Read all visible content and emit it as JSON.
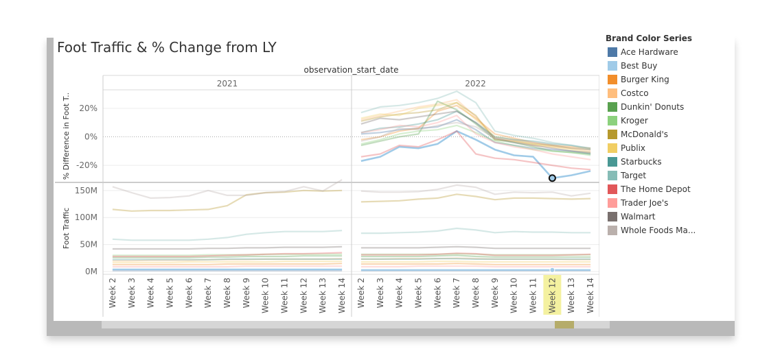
{
  "title": "Foot Traffic & % Change from LY",
  "chart_data": {
    "type": "line",
    "title": "Foot Traffic & % Change from LY",
    "column_header": "observation_start_date",
    "years": [
      "2021",
      "2022"
    ],
    "categories": [
      "Week 2",
      "Week 3",
      "Week 4",
      "Week 5",
      "Week 6",
      "Week 7",
      "Week 8",
      "Week 9",
      "Week 10",
      "Week 11",
      "Week 12",
      "Week 13",
      "Week 14"
    ],
    "highlighted_category": {
      "year": "2022",
      "week": "Week 12"
    },
    "panels": [
      {
        "ylabel": "% Difference in Foot T..",
        "ylim": [
          -32,
          33
        ],
        "yticks": [
          -20,
          0,
          20
        ],
        "yticklabels": [
          "-20%",
          "0%",
          "20%"
        ],
        "reference_line": 0,
        "years_with_data": [
          "2022"
        ]
      },
      {
        "ylabel": "Foot Traffic",
        "ylim": [
          -5,
          165
        ],
        "yticks": [
          0,
          50,
          100,
          150
        ],
        "yticklabels": [
          "0M",
          "50M",
          "100M",
          "150M"
        ]
      }
    ],
    "series": [
      {
        "name": "Ace Hardware",
        "color": "#4e79a7",
        "traffic": {
          "2021": [
            2,
            2,
            2,
            2,
            2,
            2,
            2,
            2,
            2,
            2,
            2,
            2,
            2
          ],
          "2022": [
            2,
            2,
            2,
            2,
            2,
            2,
            2,
            2,
            2,
            2,
            2,
            2,
            2
          ]
        },
        "pct_2022": [
          2,
          3,
          5,
          6,
          7,
          12,
          5,
          -4,
          -6,
          -8,
          -9,
          -10,
          -12
        ]
      },
      {
        "name": "Best Buy",
        "color": "#a0cbe8",
        "traffic": {
          "2021": [
            4,
            4,
            4,
            4,
            4,
            4,
            4,
            4,
            4,
            4,
            4,
            4,
            4
          ],
          "2022": [
            3,
            3,
            3,
            3,
            3,
            3,
            3,
            3,
            3,
            3,
            3,
            3,
            3
          ]
        },
        "pct_2022": [
          -17,
          -14,
          -7,
          -8,
          -5,
          4,
          -2,
          -9,
          -13,
          -14,
          -29,
          -27,
          -24
        ]
      },
      {
        "name": "Burger King",
        "color": "#f28e2b",
        "traffic": {
          "2021": [
            13,
            13,
            13,
            13,
            13,
            13,
            14,
            14,
            14,
            14,
            14,
            14,
            15
          ],
          "2022": [
            14,
            14,
            14,
            14,
            14,
            15,
            14,
            13,
            13,
            13,
            13,
            13,
            13
          ]
        },
        "pct_2022": [
          -2,
          0,
          4,
          6,
          18,
          22,
          13,
          2,
          -1,
          -4,
          -6,
          -7,
          -8
        ]
      },
      {
        "name": "Costco",
        "color": "#ffbe7d",
        "traffic": {
          "2021": [
            20,
            20,
            21,
            21,
            21,
            22,
            22,
            22,
            23,
            23,
            23,
            23,
            24
          ],
          "2022": [
            23,
            23,
            24,
            24,
            24,
            25,
            24,
            23,
            23,
            23,
            23,
            22,
            22
          ]
        },
        "pct_2022": [
          12,
          15,
          18,
          21,
          23,
          26,
          14,
          -1,
          -3,
          -6,
          -7,
          -8,
          -10
        ]
      },
      {
        "name": "Dunkin' Donuts",
        "color": "#59a14f",
        "traffic": {
          "2021": [
            26,
            26,
            26,
            26,
            26,
            27,
            27,
            28,
            28,
            28,
            29,
            29,
            29
          ],
          "2022": [
            28,
            28,
            28,
            28,
            29,
            30,
            28,
            27,
            27,
            27,
            27,
            27,
            27
          ]
        },
        "pct_2022": [
          -6,
          -3,
          0,
          2,
          25,
          19,
          9,
          -2,
          -4,
          -7,
          -10,
          -11,
          -12
        ]
      },
      {
        "name": "Kroger",
        "color": "#8cd17d",
        "traffic": {
          "2021": [
            30,
            30,
            30,
            30,
            30,
            31,
            31,
            31,
            32,
            32,
            32,
            32,
            32
          ],
          "2022": [
            32,
            32,
            32,
            32,
            32,
            33,
            32,
            31,
            31,
            31,
            31,
            31,
            31
          ]
        },
        "pct_2022": [
          -5,
          -2,
          2,
          4,
          5,
          8,
          3,
          -3,
          -6,
          -9,
          -10,
          -11,
          -13
        ]
      },
      {
        "name": "McDonald's",
        "color": "#b6992d",
        "traffic": {
          "2021": [
            115,
            112,
            113,
            113,
            114,
            115,
            122,
            142,
            146,
            147,
            150,
            149,
            150
          ],
          "2022": [
            129,
            130,
            131,
            134,
            136,
            143,
            139,
            133,
            136,
            136,
            135,
            134,
            135
          ]
        },
        "pct_2022": [
          11,
          14,
          16,
          17,
          19,
          24,
          15,
          -2,
          -3,
          -5,
          -6,
          -8,
          -9
        ]
      },
      {
        "name": "Publix",
        "color": "#f1ce63",
        "traffic": {
          "2021": [
            17,
            17,
            17,
            17,
            18,
            18,
            18,
            18,
            18,
            19,
            19,
            19,
            19
          ],
          "2022": [
            18,
            18,
            18,
            18,
            19,
            19,
            18,
            18,
            18,
            18,
            18,
            18,
            18
          ]
        },
        "pct_2022": [
          13,
          16,
          15,
          20,
          22,
          24,
          12,
          0,
          -2,
          -5,
          -7,
          -9,
          -11
        ]
      },
      {
        "name": "Starbucks",
        "color": "#499894",
        "traffic": {
          "2021": [
            22,
            22,
            22,
            22,
            22,
            22,
            23,
            23,
            23,
            23,
            23,
            23,
            23
          ],
          "2022": [
            23,
            23,
            23,
            23,
            24,
            24,
            23,
            23,
            23,
            23,
            23,
            23,
            23
          ]
        },
        "pct_2022": [
          3,
          6,
          7,
          9,
          12,
          18,
          10,
          0,
          -2,
          -3,
          -5,
          -6,
          -8
        ]
      },
      {
        "name": "Target",
        "color": "#86bcb6",
        "traffic": {
          "2021": [
            60,
            58,
            58,
            58,
            58,
            60,
            63,
            69,
            72,
            74,
            74,
            74,
            76
          ],
          "2022": [
            71,
            71,
            72,
            73,
            75,
            80,
            77,
            72,
            74,
            73,
            73,
            72,
            72
          ]
        },
        "pct_2022": [
          17,
          21,
          22,
          24,
          27,
          32,
          24,
          4,
          1,
          -1,
          -4,
          -6,
          -9
        ]
      },
      {
        "name": "The Home Depot",
        "color": "#e15759",
        "traffic": {
          "2021": [
            28,
            28,
            28,
            28,
            28,
            29,
            30,
            31,
            32,
            33,
            33,
            34,
            35
          ],
          "2022": [
            31,
            31,
            31,
            31,
            32,
            34,
            33,
            30,
            30,
            30,
            30,
            31,
            32
          ]
        },
        "pct_2022": [
          -14,
          -12,
          -6,
          -7,
          -2,
          4,
          -12,
          -15,
          -16,
          -18,
          -20,
          -22,
          -23
        ]
      },
      {
        "name": "Trader Joe's",
        "color": "#ff9d9a",
        "traffic": {
          "2021": [
            9,
            9,
            9,
            9,
            9,
            9,
            9,
            10,
            10,
            10,
            10,
            10,
            10
          ],
          "2022": [
            9,
            9,
            9,
            10,
            10,
            10,
            10,
            9,
            9,
            9,
            9,
            9,
            9
          ]
        },
        "pct_2022": [
          3,
          5,
          8,
          7,
          10,
          15,
          2,
          -4,
          -7,
          -9,
          -12,
          -14,
          -16
        ]
      },
      {
        "name": "Walmart",
        "color": "#79706e",
        "traffic": {
          "2021": [
            42,
            42,
            42,
            42,
            42,
            43,
            43,
            44,
            44,
            45,
            45,
            45,
            46
          ],
          "2022": [
            44,
            44,
            44,
            44,
            45,
            46,
            45,
            43,
            43,
            43,
            43,
            43,
            43
          ]
        },
        "pct_2022": [
          9,
          13,
          12,
          14,
          16,
          18,
          10,
          -1,
          -4,
          -6,
          -8,
          -10,
          -11
        ]
      },
      {
        "name": "Whole Foods Ma...",
        "color": "#bab0ac",
        "traffic": {
          "2021": [
            157,
            146,
            136,
            137,
            140,
            150,
            141,
            141,
            146,
            148,
            157,
            149,
            170
          ],
          "2022": [
            149,
            147,
            147,
            148,
            152,
            160,
            156,
            143,
            147,
            146,
            147,
            140,
            145
          ]
        },
        "pct_2022": [
          -3,
          0,
          6,
          5,
          8,
          10,
          7,
          -1,
          -2,
          -4,
          -6,
          -8,
          -9
        ]
      }
    ],
    "selected": {
      "series": "Best Buy",
      "year": "2022",
      "week": "Week 12"
    }
  },
  "legend": {
    "title": "Brand Color Series",
    "items": [
      {
        "label": "Ace Hardware",
        "color": "#4e79a7"
      },
      {
        "label": "Best Buy",
        "color": "#a0cbe8"
      },
      {
        "label": "Burger King",
        "color": "#f28e2b"
      },
      {
        "label": "Costco",
        "color": "#ffbe7d"
      },
      {
        "label": "Dunkin' Donuts",
        "color": "#59a14f"
      },
      {
        "label": "Kroger",
        "color": "#8cd17d"
      },
      {
        "label": "McDonald's",
        "color": "#b6992d"
      },
      {
        "label": "Publix",
        "color": "#f1ce63"
      },
      {
        "label": "Starbucks",
        "color": "#499894"
      },
      {
        "label": "Target",
        "color": "#86bcb6"
      },
      {
        "label": "The Home Depot",
        "color": "#e15759"
      },
      {
        "label": "Trader Joe's",
        "color": "#ff9d9a"
      },
      {
        "label": "Walmart",
        "color": "#79706e"
      },
      {
        "label": "Whole Foods Ma...",
        "color": "#bab0ac"
      }
    ]
  }
}
